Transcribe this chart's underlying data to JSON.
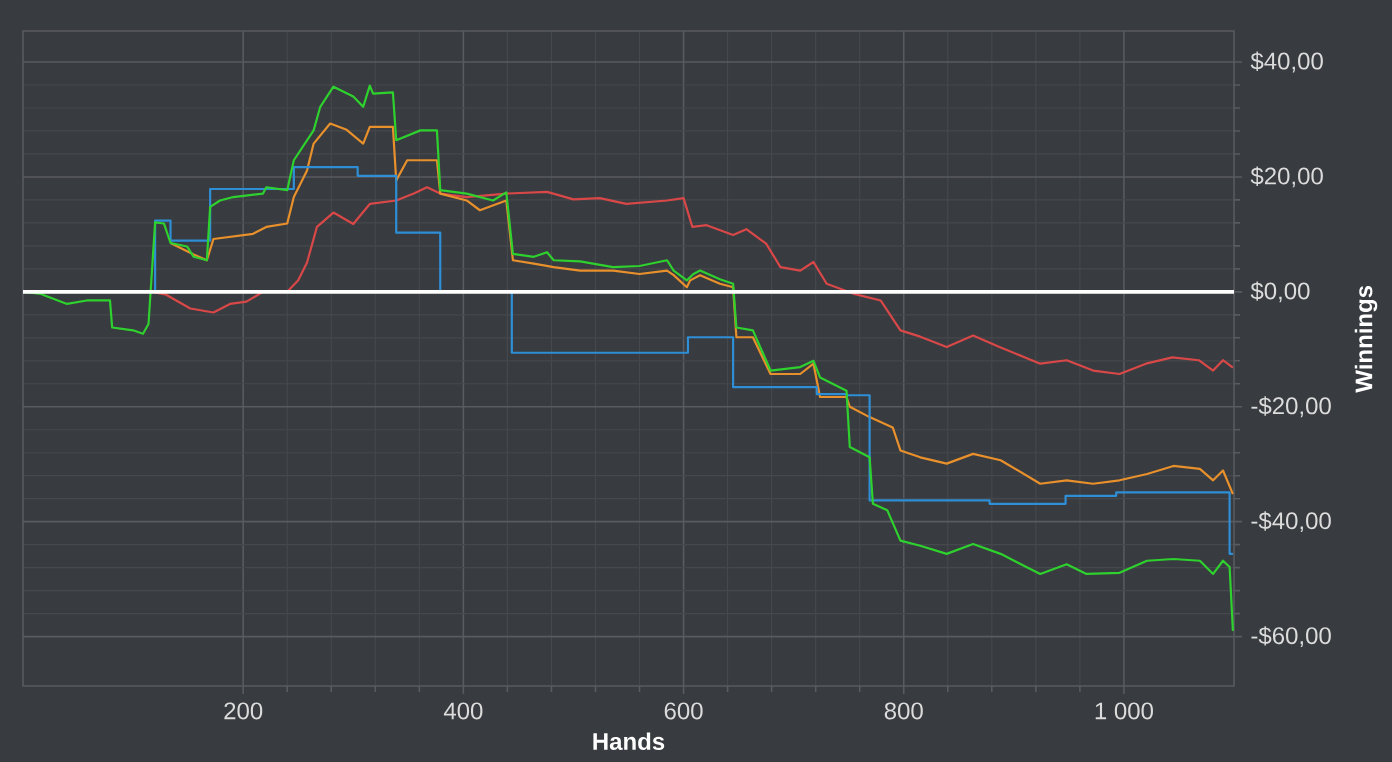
{
  "chart_data": {
    "type": "line",
    "xlabel": "Hands",
    "ylabel": "Winnings",
    "xlim": [
      0,
      1100
    ],
    "ylim": [
      -68.6,
      45.4
    ],
    "xticks": [
      200,
      400,
      600,
      800,
      {
        "value": 1000,
        "label": "1 000"
      }
    ],
    "yticks": [
      {
        "value": -60,
        "label": "-$60,00"
      },
      {
        "value": -40,
        "label": "-$40,00"
      },
      {
        "value": -20,
        "label": "-$20,00"
      },
      {
        "value": 0,
        "label": "$0,00"
      },
      {
        "value": 20,
        "label": "$20,00"
      },
      {
        "value": 40,
        "label": "$40,00"
      }
    ],
    "grid": true,
    "ref_lines": [
      {
        "axis": "y",
        "value": 0,
        "color": "#ffffff"
      }
    ],
    "series": [
      {
        "color": "#d94848",
        "x": [
          0,
          118,
          130,
          152,
          173,
          188,
          203,
          218,
          240,
          250,
          258,
          267,
          282,
          300,
          315,
          339,
          355,
          367,
          379,
          403,
          439,
          476,
          500,
          524,
          548,
          585,
          600,
          608,
          621,
          645,
          657,
          675,
          688,
          706,
          718,
          730,
          754,
          779,
          797,
          815,
          839,
          863,
          887,
          924,
          948,
          972,
          996,
          1020,
          1044,
          1068,
          1081,
          1090,
          1099
        ],
        "values": [
          0,
          0,
          -0.5,
          -2.9,
          -3.6,
          -2.1,
          -1.7,
          0,
          0,
          2,
          5.1,
          11.3,
          13.8,
          11.8,
          15.3,
          15.9,
          17.1,
          18.2,
          17.1,
          16.5,
          17.1,
          17.4,
          16.1,
          16.3,
          15.3,
          15.9,
          16.3,
          11.3,
          11.6,
          9.9,
          10.9,
          8.4,
          4.3,
          3.7,
          5.2,
          1.4,
          -0.3,
          -1.5,
          -6.7,
          -7.8,
          -9.6,
          -7.6,
          -9.6,
          -12.5,
          -11.9,
          -13.7,
          -14.3,
          -12.5,
          -11.4,
          -11.9,
          -13.7,
          -11.9,
          -13.2
        ]
      },
      {
        "color": "#e8902c",
        "x": [
          134,
          155,
          167,
          173,
          209,
          221,
          240,
          246,
          258,
          264,
          279,
          294,
          309,
          315,
          336,
          339,
          349,
          376,
          379,
          403,
          415,
          439,
          445,
          464,
          482,
          506,
          536,
          560,
          585,
          591,
          603,
          606,
          615,
          633,
          645,
          648,
          663,
          679,
          706,
          718,
          724,
          748,
          751,
          769,
          790,
          797,
          815,
          839,
          863,
          888,
          924,
          948,
          972,
          996,
          1021,
          1045,
          1069,
          1081,
          1090,
          1099
        ],
        "values": [
          8.5,
          6.5,
          5.5,
          9.2,
          10.1,
          11.3,
          11.9,
          16.5,
          21.1,
          25.8,
          29.3,
          28.2,
          25.8,
          28.7,
          28.7,
          19.4,
          22.9,
          22.9,
          17.1,
          15.9,
          14.2,
          15.9,
          5.5,
          4.9,
          4.3,
          3.7,
          3.7,
          3.1,
          3.7,
          2.9,
          0.8,
          2,
          2.9,
          1.4,
          0.8,
          -7.9,
          -7.9,
          -14.3,
          -14.3,
          -12.5,
          -18.3,
          -18.3,
          -20,
          -21.8,
          -23.6,
          -27.6,
          -28.8,
          -29.9,
          -28.2,
          -29.3,
          -33.4,
          -32.8,
          -33.4,
          -32.8,
          -31.7,
          -30.3,
          -30.8,
          -32.8,
          -31.1,
          -35.2
        ]
      },
      {
        "type": "step",
        "color": "#2e8fd6",
        "x": [
          0,
          120,
          134,
          170,
          246,
          304,
          339,
          379,
          444,
          604,
          645,
          721,
          748,
          769,
          878,
          947,
          993,
          1096,
          1099
        ],
        "values": [
          0,
          12.4,
          8.9,
          17.9,
          21.7,
          20.2,
          10.3,
          0,
          -10.6,
          -7.9,
          -16.6,
          -17.8,
          -18,
          -36.3,
          -36.9,
          -35.5,
          -34.9,
          -45.6,
          -45.6
        ]
      },
      {
        "color": "#2ed12e",
        "x": [
          0,
          15,
          40,
          58,
          79,
          81,
          100,
          109,
          114,
          120,
          128,
          134,
          149,
          155,
          167,
          170,
          179,
          191,
          218,
          221,
          240,
          246,
          264,
          270,
          282,
          300,
          309,
          315,
          318,
          336,
          339,
          361,
          376,
          379,
          403,
          427,
          439,
          445,
          464,
          476,
          482,
          506,
          536,
          560,
          585,
          591,
          603,
          609,
          615,
          633,
          645,
          648,
          663,
          679,
          706,
          718,
          724,
          748,
          751,
          769,
          772,
          785,
          797,
          815,
          839,
          863,
          888,
          924,
          948,
          966,
          996,
          1021,
          1045,
          1069,
          1081,
          1090,
          1096,
          1099
        ],
        "values": [
          0,
          -0.3,
          -2.1,
          -1.5,
          -1.5,
          -6.2,
          -6.7,
          -7.3,
          -5.6,
          12.1,
          11.9,
          8.5,
          7.9,
          6.1,
          5.5,
          14.8,
          15.9,
          16.5,
          17.1,
          18.2,
          17.7,
          22.9,
          28.1,
          32.2,
          35.7,
          34,
          32.2,
          35.9,
          34.5,
          34.7,
          26.4,
          28.1,
          28.1,
          17.7,
          17.1,
          15.9,
          17.3,
          6.6,
          6.1,
          6.9,
          5.5,
          5.3,
          4.3,
          4.5,
          5.5,
          3.7,
          2,
          3.1,
          3.7,
          2.2,
          1.4,
          -6.2,
          -6.7,
          -13.7,
          -13.1,
          -12,
          -14.9,
          -17.2,
          -27,
          -28.8,
          -36.9,
          -38,
          -43.3,
          -44.2,
          -45.6,
          -43.9,
          -45.6,
          -49.1,
          -47.4,
          -49.1,
          -48.9,
          -46.8,
          -46.5,
          -46.8,
          -49.1,
          -46.8,
          -47.9,
          -59
        ]
      }
    ]
  }
}
